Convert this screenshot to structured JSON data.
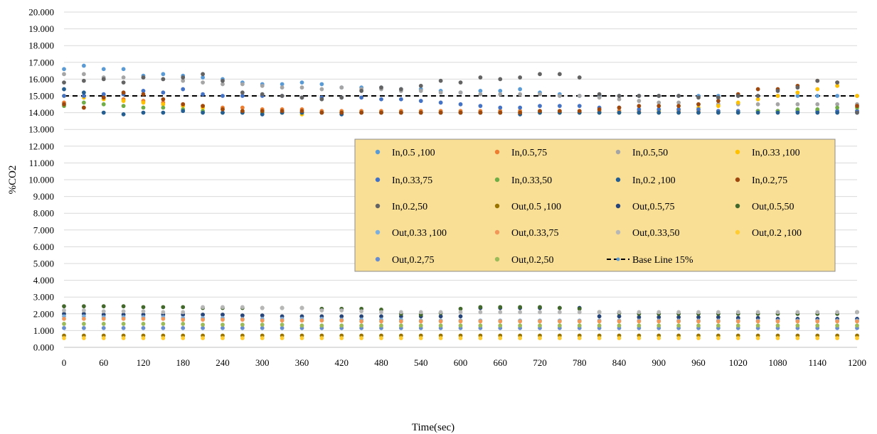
{
  "chart_data": {
    "type": "scatter",
    "xlabel": "Time(sec)",
    "ylabel": "%CO2",
    "xlim": [
      0,
      1200
    ],
    "ylim": [
      0,
      20
    ],
    "x_ticks": [
      "0",
      "60",
      "120",
      "180",
      "240",
      "300",
      "360",
      "420",
      "480",
      "540",
      "600",
      "660",
      "720",
      "780",
      "840",
      "900",
      "960",
      "1020",
      "1080",
      "1140",
      "1200"
    ],
    "y_ticks": [
      "0.000",
      "1.000",
      "2.000",
      "3.000",
      "4.000",
      "5.000",
      "6.000",
      "7.000",
      "8.000",
      "9.000",
      "10.000",
      "11.000",
      "12.000",
      "13.000",
      "14.000",
      "15.000",
      "16.000",
      "17.000",
      "18.000",
      "19.000",
      "20.000"
    ],
    "grid": "horizontal",
    "legend_position": "center-right",
    "legend_background": "#F9DF96",
    "x": [
      0,
      30,
      60,
      90,
      120,
      150,
      180,
      210,
      240,
      270,
      300,
      330,
      360,
      390,
      420,
      450,
      480,
      510,
      540,
      570,
      600,
      630,
      660,
      690,
      720,
      750,
      780,
      810,
      840,
      870,
      900,
      930,
      960,
      990,
      1020,
      1050,
      1080,
      1110,
      1140,
      1170,
      1200
    ],
    "series": [
      {
        "name": "In,0.5 ,100",
        "color": "#5B9BD5",
        "values": [
          16.6,
          16.8,
          16.6,
          16.6,
          16.2,
          16.3,
          16.2,
          16.1,
          16.0,
          15.8,
          15.7,
          15.7,
          15.8,
          15.7,
          15.5,
          15.5,
          15.5,
          15.4,
          15.4,
          15.3,
          15.2,
          15.3,
          15.3,
          15.4,
          15.2,
          15.1,
          15.0,
          15.0,
          15.0,
          15.0,
          15.0,
          15.0,
          15.0,
          15.0,
          15.0,
          15.0,
          15.0,
          15.0,
          15.0,
          15.0,
          15.0
        ]
      },
      {
        "name": "In,0.5,75",
        "color": "#ED7D31",
        "values": [
          14.6,
          14.3,
          14.9,
          14.8,
          14.7,
          14.6,
          14.5,
          14.4,
          14.3,
          14.3,
          14.2,
          14.2,
          14.2,
          14.1,
          14.1,
          14.1,
          14.1,
          14.1,
          14.1,
          14.1,
          14.1,
          14.1,
          14.1,
          14.1,
          14.1,
          14.1,
          14.1,
          14.1,
          14.1,
          14.1,
          14.1,
          14.1,
          14.1,
          14.1,
          14.1,
          14.1,
          14.1,
          14.1,
          14.1,
          14.1,
          14.1
        ]
      },
      {
        "name": "In,0.5,50",
        "color": "#A5A5A5",
        "values": [
          16.3,
          16.3,
          16.1,
          16.1,
          16.1,
          16.0,
          15.9,
          15.8,
          15.7,
          15.7,
          15.6,
          15.5,
          15.5,
          15.4,
          15.5,
          15.4,
          15.4,
          15.3,
          15.3,
          15.2,
          15.2,
          15.1,
          15.1,
          15.1,
          15.1,
          15.0,
          15.0,
          14.9,
          14.8,
          14.7,
          14.6,
          14.6,
          14.5,
          14.5,
          14.5,
          14.5,
          14.5,
          14.5,
          14.5,
          14.5,
          14.5
        ]
      },
      {
        "name": "In,0.33 ,100",
        "color": "#FFC000",
        "values": [
          15.0,
          14.9,
          14.8,
          14.7,
          14.6,
          14.5,
          14.4,
          14.3,
          14.2,
          14.1,
          14.1,
          14.0,
          13.9,
          14.0,
          14.0,
          14.0,
          14.0,
          14.0,
          14.0,
          14.0,
          14.0,
          14.0,
          14.0,
          14.0,
          14.0,
          14.0,
          14.0,
          14.0,
          14.0,
          14.0,
          14.1,
          14.2,
          14.3,
          14.4,
          14.6,
          14.8,
          15.0,
          15.2,
          15.4,
          15.6,
          15.0
        ]
      },
      {
        "name": "In,0.33,75",
        "color": "#4472C4",
        "values": [
          15.0,
          15.0,
          15.1,
          15.1,
          15.3,
          15.2,
          15.4,
          15.1,
          15.0,
          15.0,
          15.0,
          15.0,
          14.9,
          14.9,
          14.9,
          14.9,
          14.8,
          14.8,
          14.7,
          14.6,
          14.5,
          14.4,
          14.3,
          14.3,
          14.4,
          14.4,
          14.4,
          14.3,
          14.3,
          14.2,
          14.2,
          14.2,
          14.2,
          14.1,
          14.1,
          14.1,
          14.1,
          14.1,
          14.1,
          14.1,
          14.1
        ]
      },
      {
        "name": "In,0.33,50",
        "color": "#70AD47",
        "values": [
          14.4,
          14.6,
          14.5,
          14.4,
          14.3,
          14.3,
          14.2,
          14.1,
          14.0,
          14.0,
          14.0,
          14.0,
          14.0,
          14.0,
          14.0,
          14.0,
          14.0,
          14.0,
          14.0,
          14.0,
          14.0,
          14.0,
          14.0,
          14.0,
          14.0,
          14.0,
          14.0,
          14.0,
          14.0,
          14.0,
          14.0,
          14.0,
          14.0,
          14.0,
          14.0,
          14.1,
          14.1,
          14.2,
          14.2,
          14.3,
          14.3
        ]
      },
      {
        "name": "In,0.2 ,100",
        "color": "#255E91",
        "values": [
          15.4,
          15.2,
          14.0,
          13.9,
          14.0,
          14.0,
          14.1,
          14.0,
          14.0,
          14.0,
          13.9,
          14.0,
          14.0,
          14.0,
          13.9,
          14.0,
          14.0,
          14.0,
          14.0,
          14.0,
          14.0,
          14.0,
          14.0,
          13.9,
          14.0,
          14.0,
          14.0,
          14.0,
          14.0,
          14.0,
          14.0,
          14.0,
          14.0,
          14.0,
          14.0,
          14.0,
          14.0,
          14.0,
          14.0,
          14.0,
          14.0
        ]
      },
      {
        "name": "In,0.2,75",
        "color": "#9E480E",
        "values": [
          14.5,
          14.3,
          14.9,
          15.2,
          15.1,
          14.8,
          14.5,
          14.4,
          14.2,
          14.1,
          14.1,
          14.1,
          14.1,
          14.0,
          14.0,
          14.0,
          14.0,
          14.0,
          14.0,
          14.0,
          14.0,
          14.0,
          14.0,
          14.0,
          14.1,
          14.1,
          14.1,
          14.2,
          14.3,
          14.4,
          14.4,
          14.4,
          14.5,
          14.7,
          15.1,
          15.4,
          15.4,
          15.6,
          15.9,
          15.8,
          14.4
        ]
      },
      {
        "name": "In,0.2,50",
        "color": "#636363",
        "values": [
          15.8,
          15.9,
          16.0,
          15.8,
          16.1,
          16.0,
          16.1,
          16.3,
          15.9,
          15.2,
          15.1,
          15.0,
          14.9,
          14.8,
          14.9,
          15.3,
          15.5,
          15.4,
          15.6,
          15.9,
          15.8,
          16.1,
          16.0,
          16.1,
          16.3,
          16.3,
          16.1,
          15.1,
          15.0,
          15.0,
          15.0,
          15.0,
          14.9,
          14.9,
          15.0,
          15.0,
          15.3,
          15.5,
          15.9,
          15.8,
          14.0
        ]
      },
      {
        "name": "Out,0.5 ,100",
        "color": "#997300",
        "values": [
          0.7,
          0.7,
          0.7,
          0.7,
          0.7,
          0.7,
          0.7,
          0.7,
          0.7,
          0.7,
          0.7,
          0.7,
          0.7,
          0.7,
          0.7,
          0.7,
          0.7,
          0.7,
          0.7,
          0.7,
          0.7,
          0.7,
          0.7,
          0.7,
          0.7,
          0.7,
          0.7,
          0.7,
          0.7,
          0.7,
          0.7,
          0.7,
          0.7,
          0.7,
          0.7,
          0.7,
          0.7,
          0.7,
          0.7,
          0.7,
          0.7
        ]
      },
      {
        "name": "Out,0.5,75",
        "color": "#264478",
        "values": [
          2.0,
          2.0,
          1.95,
          1.95,
          1.95,
          1.95,
          1.95,
          1.95,
          1.95,
          1.9,
          1.9,
          1.85,
          1.85,
          1.85,
          1.85,
          1.85,
          1.85,
          1.85,
          1.85,
          1.85,
          1.85,
          2.35,
          2.35,
          2.35,
          2.35,
          2.35,
          2.35,
          1.85,
          1.85,
          1.8,
          1.8,
          1.8,
          1.8,
          1.8,
          1.75,
          1.75,
          1.7,
          1.7,
          1.7,
          1.7,
          1.7
        ]
      },
      {
        "name": "Out,0.5,50",
        "color": "#43682B",
        "values": [
          2.45,
          2.45,
          2.45,
          2.45,
          2.4,
          2.4,
          2.4,
          2.35,
          2.35,
          2.35,
          2.35,
          2.35,
          2.35,
          2.3,
          2.3,
          2.3,
          2.25,
          2.0,
          1.95,
          2.05,
          2.3,
          2.4,
          2.4,
          2.4,
          2.4,
          2.35,
          2.3,
          2.1,
          2.05,
          2.0,
          2.0,
          2.0,
          2.0,
          2.0,
          2.0,
          2.0,
          2.0,
          2.0,
          2.0,
          2.0,
          2.1
        ]
      },
      {
        "name": "Out,0.33 ,100",
        "color": "#7CAFDD",
        "values": [
          1.85,
          1.85,
          1.8,
          1.8,
          1.8,
          1.8,
          1.75,
          1.75,
          1.75,
          1.7,
          1.7,
          1.7,
          1.7,
          1.7,
          1.65,
          1.65,
          1.65,
          1.65,
          1.6,
          1.6,
          1.6,
          1.6,
          1.6,
          1.6,
          1.6,
          1.6,
          1.6,
          1.6,
          1.6,
          1.6,
          1.6,
          1.6,
          1.6,
          1.6,
          1.6,
          1.6,
          1.6,
          1.6,
          1.6,
          1.6,
          1.6
        ]
      },
      {
        "name": "Out,0.33,75",
        "color": "#F1975A",
        "values": [
          1.7,
          1.7,
          1.7,
          1.7,
          1.7,
          1.7,
          1.65,
          1.65,
          1.65,
          1.65,
          1.6,
          1.6,
          1.6,
          1.6,
          1.6,
          1.55,
          1.55,
          1.55,
          1.55,
          1.55,
          1.55,
          1.55,
          1.55,
          1.55,
          1.55,
          1.55,
          1.55,
          1.55,
          1.55,
          1.55,
          1.55,
          1.55,
          1.55,
          1.55,
          1.55,
          1.55,
          1.55,
          1.55,
          1.55,
          1.55,
          1.55
        ]
      },
      {
        "name": "Out,0.33,50",
        "color": "#B7B7B7",
        "values": [
          2.2,
          2.2,
          2.15,
          2.15,
          2.15,
          2.1,
          2.1,
          2.4,
          2.4,
          2.4,
          2.35,
          2.35,
          2.35,
          2.2,
          2.2,
          2.15,
          2.1,
          2.1,
          2.1,
          2.1,
          2.1,
          2.1,
          2.1,
          2.1,
          2.1,
          2.1,
          2.1,
          2.1,
          2.1,
          2.1,
          2.1,
          2.1,
          2.1,
          2.1,
          2.1,
          2.1,
          2.1,
          2.1,
          2.1,
          2.1,
          2.1
        ]
      },
      {
        "name": "Out,0.2 ,100",
        "color": "#FFCD33",
        "values": [
          0.55,
          0.55,
          0.55,
          0.55,
          0.55,
          0.55,
          0.55,
          0.55,
          0.55,
          0.55,
          0.55,
          0.55,
          0.55,
          0.55,
          0.55,
          0.55,
          0.55,
          0.55,
          0.55,
          0.55,
          0.55,
          0.55,
          0.55,
          0.55,
          0.55,
          0.55,
          0.55,
          0.55,
          0.55,
          0.55,
          0.55,
          0.55,
          0.55,
          0.55,
          0.55,
          0.55,
          0.55,
          0.55,
          0.55,
          0.55,
          0.55
        ]
      },
      {
        "name": "Out,0.2,75",
        "color": "#698ED0",
        "values": [
          1.15,
          1.15,
          1.15,
          1.15,
          1.15,
          1.15,
          1.15,
          1.15,
          1.15,
          1.15,
          1.15,
          1.15,
          1.15,
          1.15,
          1.15,
          1.15,
          1.15,
          1.15,
          1.15,
          1.15,
          1.15,
          1.15,
          1.15,
          1.15,
          1.15,
          1.15,
          1.15,
          1.15,
          1.15,
          1.15,
          1.15,
          1.15,
          1.15,
          1.15,
          1.15,
          1.15,
          1.15,
          1.15,
          1.15,
          1.15,
          1.15
        ]
      },
      {
        "name": "Out,0.2,50",
        "color": "#9BBB59",
        "values": [
          1.4,
          1.4,
          1.4,
          1.4,
          1.4,
          1.4,
          1.4,
          1.35,
          1.35,
          1.35,
          1.35,
          1.35,
          1.3,
          1.3,
          1.3,
          1.3,
          1.3,
          1.3,
          1.3,
          1.3,
          1.3,
          1.3,
          1.3,
          1.3,
          1.3,
          1.3,
          1.3,
          1.3,
          1.3,
          1.3,
          1.3,
          1.3,
          1.3,
          1.3,
          1.3,
          1.3,
          1.3,
          1.3,
          1.3,
          1.3,
          1.3
        ]
      }
    ],
    "baseline": {
      "name": "Base Line 15%",
      "value": 15,
      "color": "#000000",
      "style": "dashed",
      "marker_color": "#5B9BD5"
    }
  }
}
